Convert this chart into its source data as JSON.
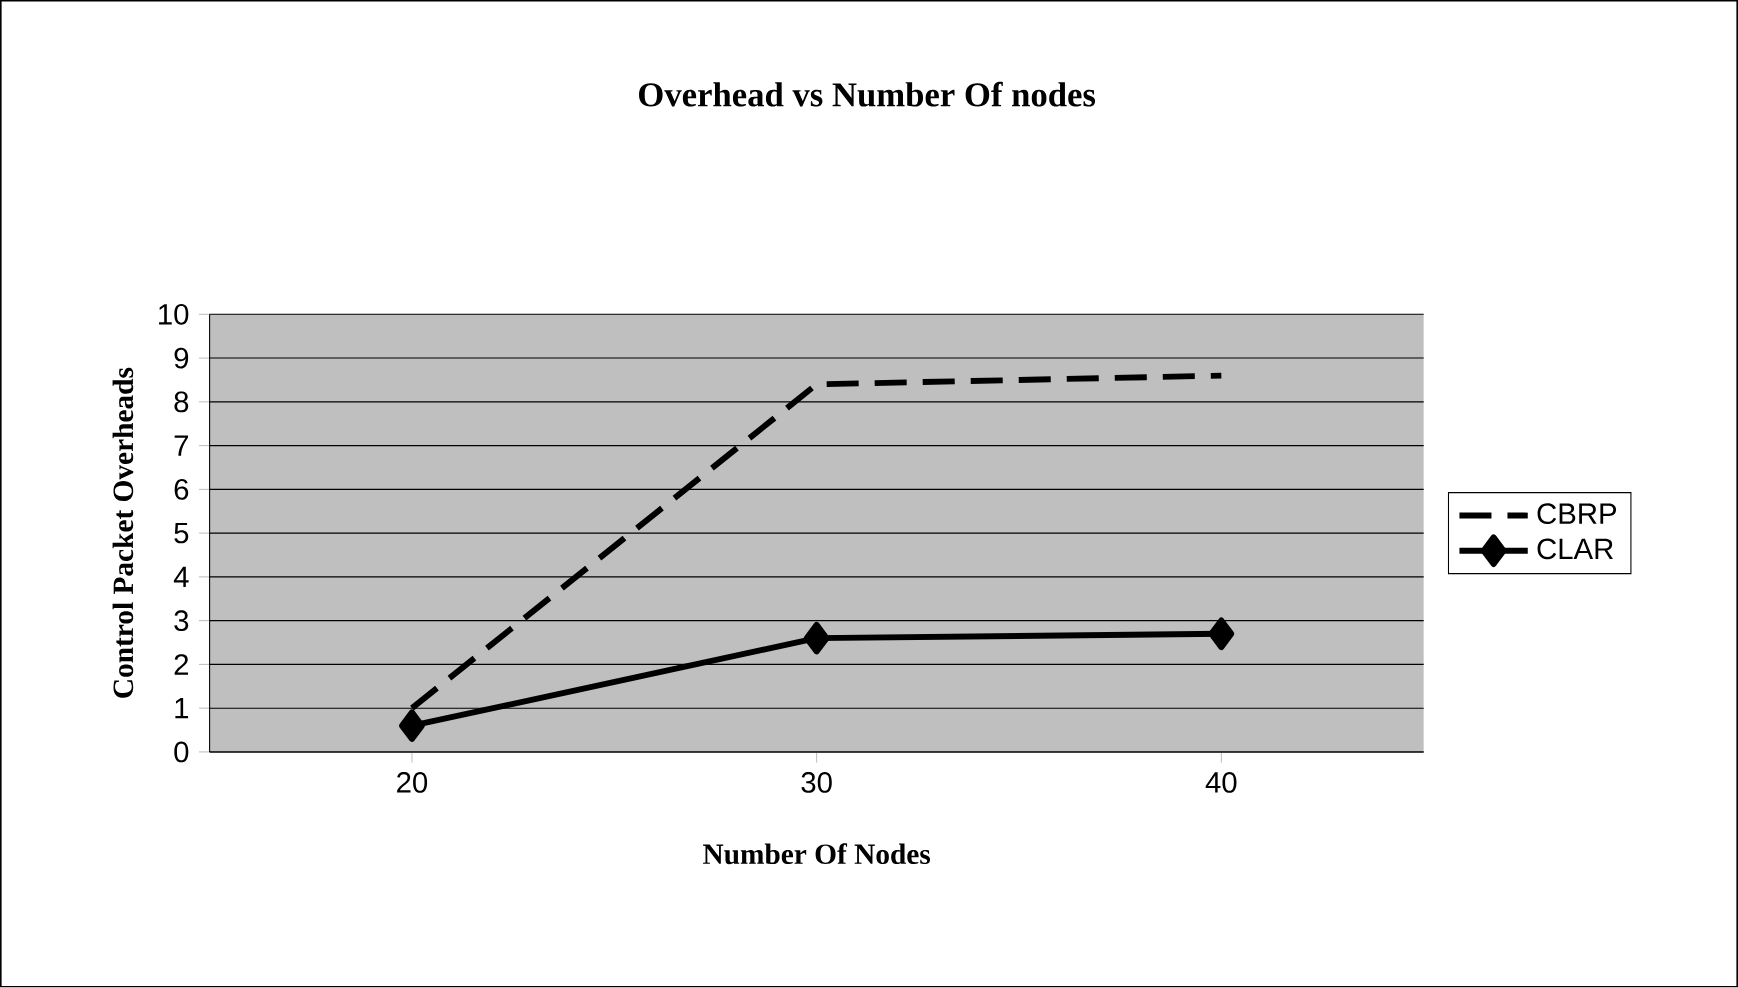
{
  "chart_data": {
    "type": "line",
    "title": "Overhead vs Number Of nodes",
    "xlabel": "Number Of Nodes",
    "ylabel": "Control Packet Overheads",
    "categories": [
      "20",
      "30",
      "40"
    ],
    "series": [
      {
        "name": "CBRP",
        "color": "#000000",
        "values": [
          1.0,
          8.4,
          8.6
        ],
        "line_style": "dashed",
        "marker": "none"
      },
      {
        "name": "CLAR",
        "color": "#000000",
        "values": [
          0.6,
          2.6,
          2.7
        ],
        "line_style": "solid",
        "marker": "diamond"
      }
    ],
    "ylim": [
      0,
      10
    ],
    "yticks": [
      0,
      1,
      2,
      3,
      4,
      5,
      6,
      7,
      8,
      9,
      10
    ],
    "grid": "y",
    "legend": "right"
  }
}
